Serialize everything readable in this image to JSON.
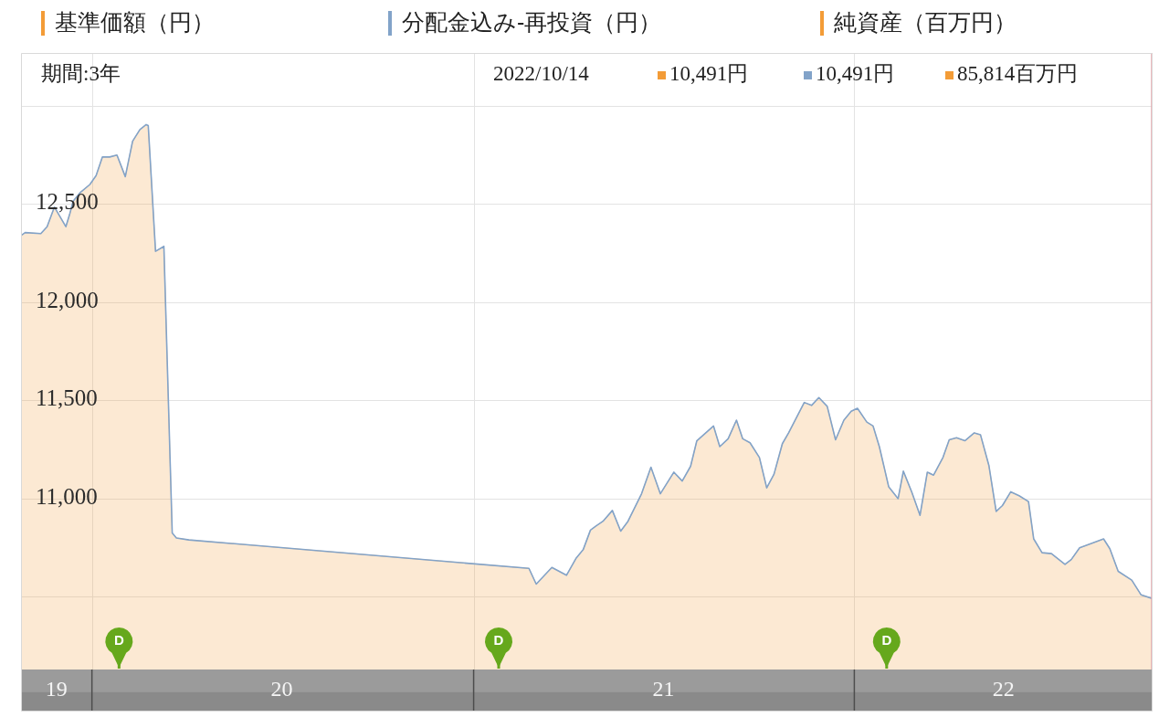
{
  "chart_data": {
    "type": "area",
    "x": [
      "2019-10-25",
      "2019-10-29",
      "2019-11-13",
      "2019-11-19",
      "2019-11-26",
      "2019-12-07",
      "2019-12-11",
      "2019-12-14",
      "2019-12-21",
      "2019-12-30",
      "2020-01-05",
      "2020-01-11",
      "2020-01-18",
      "2020-01-25",
      "2020-02-02",
      "2020-02-09",
      "2020-02-16",
      "2020-02-22",
      "2020-02-24",
      "2020-03-02",
      "2020-03-10",
      "2020-03-18",
      "2020-03-22",
      "2020-04-03",
      "2021-02-23",
      "2021-03-02",
      "2021-03-17",
      "2021-03-31",
      "2021-04-09",
      "2021-04-16",
      "2021-04-23",
      "2021-04-28",
      "2021-05-05",
      "2021-05-14",
      "2021-05-22",
      "2021-05-29",
      "2021-06-11",
      "2021-06-20",
      "2021-06-29",
      "2021-07-12",
      "2021-07-20",
      "2021-07-28",
      "2021-08-03",
      "2021-08-19",
      "2021-08-25",
      "2021-09-02",
      "2021-09-10",
      "2021-09-16",
      "2021-09-23",
      "2021-10-02",
      "2021-10-09",
      "2021-10-16",
      "2021-10-24",
      "2021-10-30",
      "2021-11-14",
      "2021-11-21",
      "2021-11-28",
      "2021-12-06",
      "2021-12-14",
      "2021-12-22",
      "2021-12-29",
      "2022-01-04",
      "2022-01-13",
      "2022-01-19",
      "2022-01-25",
      "2022-02-03",
      "2022-02-12",
      "2022-02-17",
      "2022-02-25",
      "2022-03-05",
      "2022-03-12",
      "2022-03-18",
      "2022-03-27",
      "2022-04-02",
      "2022-04-09",
      "2022-04-17",
      "2022-04-26",
      "2022-05-02",
      "2022-05-10",
      "2022-05-17",
      "2022-05-23",
      "2022-05-31",
      "2022-06-08",
      "2022-06-17",
      "2022-06-22",
      "2022-06-30",
      "2022-07-09",
      "2022-07-22",
      "2022-07-28",
      "2022-08-05",
      "2022-08-18",
      "2022-08-28",
      "2022-09-03",
      "2022-09-11",
      "2022-09-24",
      "2022-10-03",
      "2022-10-14"
    ],
    "series": [
      {
        "name": "基準価額（円）",
        "color": "#f39c37",
        "values": [
          12340,
          12355,
          12350,
          12385,
          12485,
          12385,
          12455,
          12515,
          12560,
          12600,
          12645,
          12740,
          12740,
          12750,
          12640,
          12820,
          12880,
          12905,
          12900,
          12260,
          12285,
          10825,
          10800,
          10790,
          10645,
          10565,
          10650,
          10610,
          10695,
          10740,
          10840,
          10860,
          10885,
          10940,
          10835,
          10885,
          11025,
          11160,
          11025,
          11135,
          11090,
          11165,
          11295,
          11370,
          11265,
          11305,
          11400,
          11305,
          11285,
          11210,
          11055,
          11125,
          11280,
          11335,
          11490,
          11475,
          11515,
          11470,
          11300,
          11400,
          11445,
          11460,
          11390,
          11370,
          11265,
          11060,
          11000,
          11140,
          11035,
          10915,
          11135,
          11120,
          11210,
          11300,
          11310,
          11295,
          11335,
          11325,
          11170,
          10935,
          10965,
          11035,
          11015,
          10985,
          10795,
          10725,
          10720,
          10665,
          10690,
          10750,
          10775,
          10795,
          10745,
          10630,
          10585,
          10510,
          10491
        ]
      },
      {
        "name": "分配金込み-再投資（円）",
        "type": "line",
        "color": "#82a3c9",
        "values": [
          12340,
          12355,
          12350,
          12385,
          12485,
          12385,
          12455,
          12515,
          12560,
          12600,
          12645,
          12740,
          12740,
          12750,
          12640,
          12820,
          12880,
          12905,
          12900,
          12260,
          12285,
          10825,
          10800,
          10790,
          10645,
          10565,
          10650,
          10610,
          10695,
          10740,
          10840,
          10860,
          10885,
          10940,
          10835,
          10885,
          11025,
          11160,
          11025,
          11135,
          11090,
          11165,
          11295,
          11370,
          11265,
          11305,
          11400,
          11305,
          11285,
          11210,
          11055,
          11125,
          11280,
          11335,
          11490,
          11475,
          11515,
          11470,
          11300,
          11400,
          11445,
          11460,
          11390,
          11370,
          11265,
          11060,
          11000,
          11140,
          11035,
          10915,
          11135,
          11120,
          11210,
          11300,
          11310,
          11295,
          11335,
          11325,
          11170,
          10935,
          10965,
          11035,
          11015,
          10985,
          10795,
          10725,
          10720,
          10665,
          10690,
          10750,
          10775,
          10795,
          10745,
          10630,
          10585,
          10510,
          10491
        ]
      },
      {
        "name": "純資産（百万円）",
        "color": "#f39c37",
        "values": [
          null,
          null,
          null,
          null,
          null,
          null,
          null,
          null,
          null,
          null,
          null,
          null,
          null,
          null,
          null,
          null,
          null,
          null,
          null,
          null,
          null,
          null,
          null,
          null,
          null,
          null,
          null,
          null,
          null,
          null,
          null,
          null,
          null,
          null,
          null,
          null,
          null,
          null,
          null,
          null,
          null,
          null,
          null,
          null,
          null,
          null,
          null,
          null,
          null,
          null,
          null,
          null,
          null,
          null,
          null,
          null,
          null,
          null,
          null,
          null,
          null,
          null,
          null,
          null,
          null,
          null,
          null,
          null,
          null,
          null,
          null,
          null,
          null,
          null,
          null,
          null,
          null,
          null,
          null,
          null,
          null,
          null,
          null,
          null,
          null,
          null,
          null,
          null,
          null,
          null,
          null,
          null,
          null,
          null,
          null,
          null,
          null
        ]
      }
    ],
    "xlim": [
      "2019-10-25",
      "2022-10-14"
    ],
    "xticks": [
      {
        "value": "2019-11-28",
        "label": "19"
      },
      {
        "value": "2020-01-01",
        "label": null
      },
      {
        "value": "2020-07-01",
        "label": "20"
      },
      {
        "value": "2021-01-01",
        "label": null
      },
      {
        "value": "2021-07-02",
        "label": "21"
      },
      {
        "value": "2022-01-01",
        "label": null
      },
      {
        "value": "2022-05-24",
        "label": "22"
      }
    ],
    "ylim": [
      10130,
      13000
    ],
    "yticks": [
      {
        "value": 10500,
        "label": null
      },
      {
        "value": 11000,
        "label": "11,000"
      },
      {
        "value": 11500,
        "label": "11,500"
      },
      {
        "value": 12000,
        "label": "12,000"
      },
      {
        "value": 12500,
        "label": "12,500"
      },
      {
        "value": 13000,
        "label": null
      }
    ],
    "grid": true,
    "legend": "top",
    "ref_lines": [
      {
        "axis": "x",
        "value": "2022-10-14",
        "color": "#e6a3a8"
      },
      {
        "axis": "x",
        "value": "2020-01-27",
        "label": "D",
        "color": "#66a81c"
      },
      {
        "axis": "x",
        "value": "2021-01-25",
        "label": "D",
        "color": "#66a81c"
      },
      {
        "axis": "x",
        "value": "2022-02-01",
        "label": "D",
        "color": "#66a81c"
      }
    ],
    "annotations": [
      "期間:3年",
      "2022/10/14",
      "10,491円",
      "10,491円",
      "85,814百万円"
    ]
  }
}
